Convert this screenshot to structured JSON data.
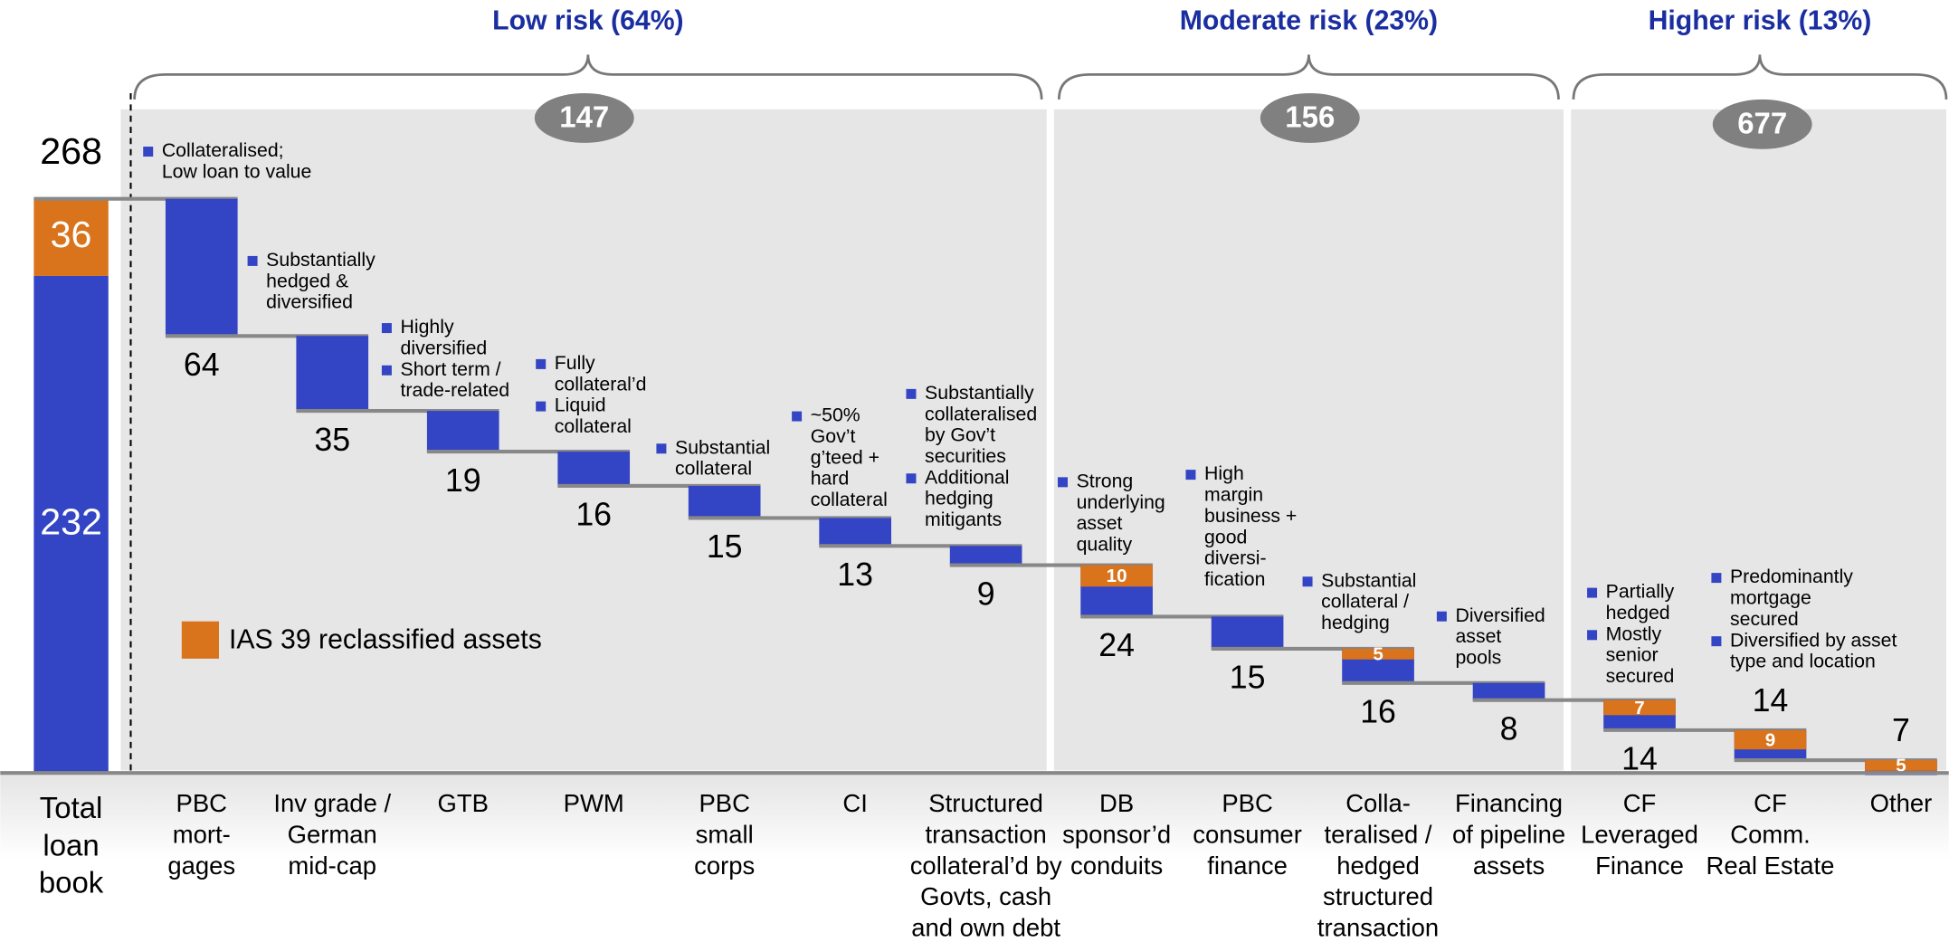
{
  "chart_data": {
    "type": "waterfall",
    "total": {
      "category": [
        "Total",
        "loan",
        "book"
      ],
      "value": 268,
      "ias": 36,
      "other": 232
    },
    "categories": [
      [
        "PBC",
        "mort-",
        "gages"
      ],
      [
        "Inv grade /",
        "German",
        "mid-cap"
      ],
      [
        "GTB"
      ],
      [
        "PWM"
      ],
      [
        "PBC",
        "small",
        "corps"
      ],
      [
        "CI"
      ],
      [
        "Structured",
        "transaction",
        "collateral’d by",
        "Govts, cash",
        "and own debt"
      ],
      [
        "DB",
        "sponsor’d",
        "conduits"
      ],
      [
        "PBC",
        "consumer",
        "finance"
      ],
      [
        "Colla-",
        "teralised /",
        "hedged",
        "structured",
        "transaction"
      ],
      [
        "Financing",
        "of pipeline",
        "assets"
      ],
      [
        "CF",
        "Leveraged",
        "Finance"
      ],
      [
        "CF",
        "Comm.",
        "Real Estate"
      ],
      [
        "Other"
      ]
    ],
    "values": [
      64,
      35,
      19,
      16,
      15,
      13,
      9,
      24,
      15,
      16,
      8,
      14,
      14,
      7
    ],
    "ias_values": [
      null,
      null,
      null,
      null,
      null,
      null,
      null,
      10,
      null,
      5,
      null,
      7,
      9,
      5
    ],
    "notes": [
      [
        [
          "Collateralised;",
          "Low loan to value"
        ]
      ],
      [
        [
          "Substantially",
          "hedged &",
          "diversified"
        ]
      ],
      [
        [
          "Highly",
          "diversified"
        ],
        [
          "Short term /",
          "trade-related"
        ]
      ],
      [
        [
          "Fully",
          "collateral’d"
        ],
        [
          "Liquid",
          "collateral"
        ]
      ],
      [
        [
          "Substantial",
          "collateral"
        ]
      ],
      [
        [
          "~50%",
          "Gov’t",
          "g’teed +",
          "hard",
          "collateral"
        ]
      ],
      [
        [
          "Substantially",
          "collateralised",
          "by Gov’t",
          "securities"
        ],
        [
          "Additional",
          "hedging",
          "mitigants"
        ]
      ],
      [
        [
          "Strong",
          "underlying",
          "asset",
          "quality"
        ]
      ],
      [
        [
          "High",
          "margin",
          "business +",
          "good",
          "diversi-",
          "fication"
        ]
      ],
      [
        [
          "Substantial",
          "collateral /",
          "hedging"
        ]
      ],
      [
        [
          "Diversified",
          "asset",
          "pools"
        ]
      ],
      [
        [
          "Partially",
          "hedged"
        ],
        [
          "Mostly",
          "senior",
          "secured"
        ]
      ],
      [
        [
          "Predominantly",
          "mortgage",
          "secured"
        ],
        [
          "Diversified by asset",
          "type and location"
        ]
      ],
      []
    ],
    "groups": [
      {
        "label": "Low risk (64%)",
        "badge": 147
      },
      {
        "label": "Moderate risk (23%)",
        "badge": 156
      },
      {
        "label": "Higher risk (13%)",
        "badge": 677
      }
    ],
    "legend": "IAS 39 reclassified assets",
    "colors": {
      "base": "#3344c4",
      "ias": "#d9731c"
    }
  }
}
